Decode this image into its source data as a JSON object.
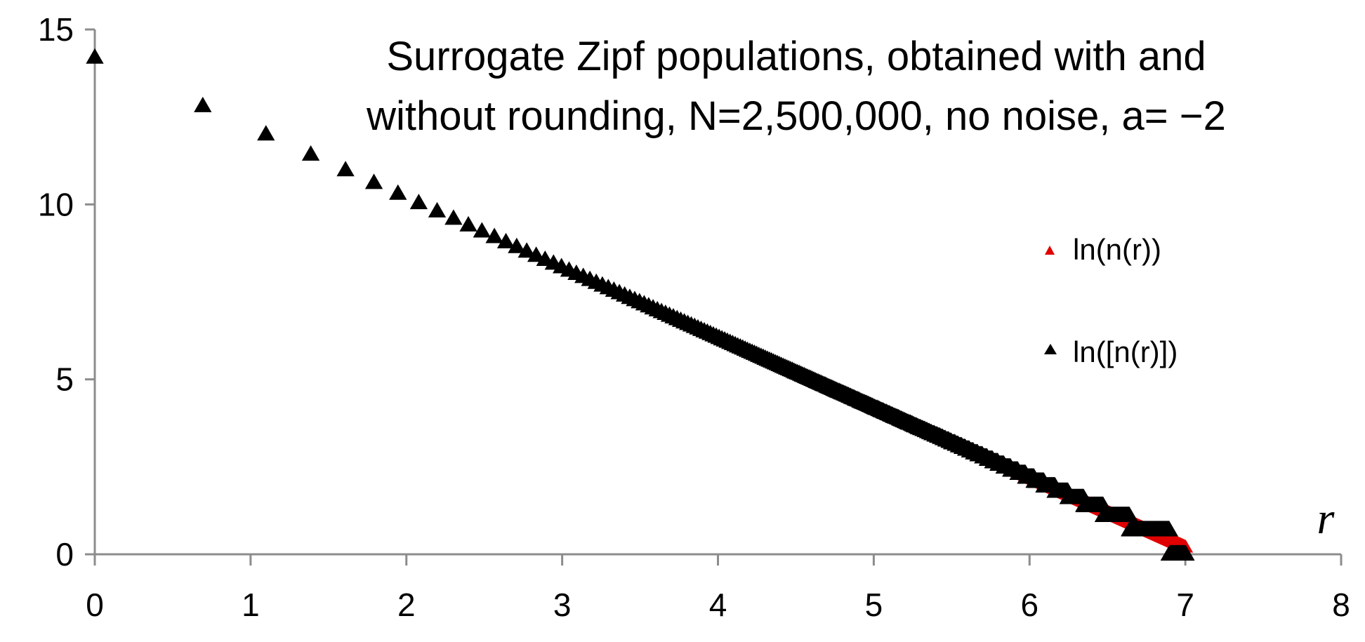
{
  "chart_data": {
    "type": "scatter",
    "title_lines": [
      "Surrogate Zipf populations, obtained with and",
      "without rounding, N=2,500,000, no noise, a= −2"
    ],
    "xlabel": "r",
    "ylabel": "",
    "xlim": [
      0,
      8
    ],
    "ylim": [
      0,
      15
    ],
    "x_ticks": [
      "0",
      "1",
      "2",
      "3",
      "4",
      "5",
      "6",
      "7",
      "8"
    ],
    "y_ticks": [
      "0",
      "5",
      "10",
      "15"
    ],
    "grid": false,
    "legend_position": "right",
    "series": [
      {
        "name": "ln(n(r))",
        "color": "#e00000",
        "marker": "triangle",
        "model": {
          "intercept": 14.2,
          "slope": -2,
          "x_from": 0,
          "x_to": 7.0,
          "n": 1100
        }
      },
      {
        "name": "ln([n(r)])",
        "color": "#000000",
        "marker": "triangle",
        "rounded": true,
        "model": {
          "intercept": 14.2,
          "slope": -2,
          "x_from": 0,
          "x_to": 7.0,
          "n": 1100
        }
      }
    ]
  }
}
